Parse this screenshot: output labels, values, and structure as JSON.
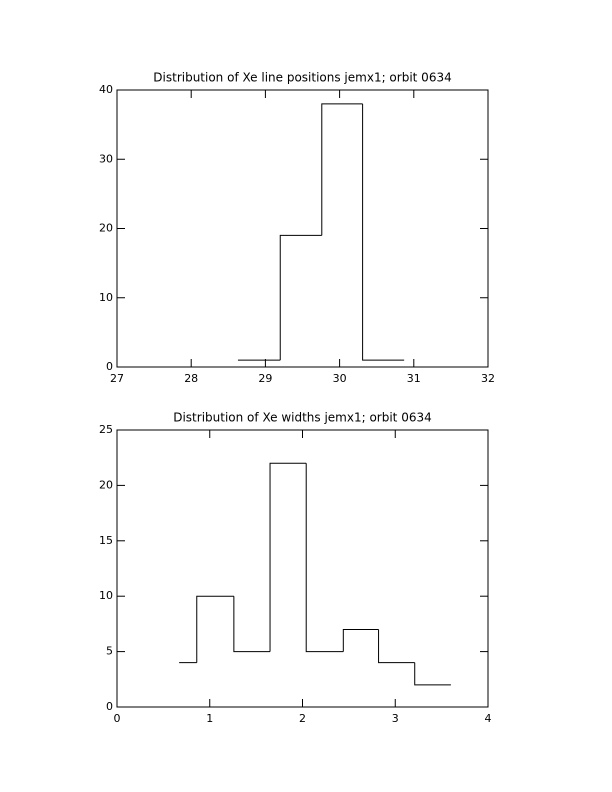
{
  "chart_data": [
    {
      "type": "histogram",
      "title": "Distribution of Xe line positions jemx1; orbit 0634",
      "bins": [
        28.63,
        29.2,
        29.76,
        30.31,
        30.87
      ],
      "values": [
        1,
        19,
        38,
        1
      ],
      "color": "#000000",
      "xlim": [
        27,
        32
      ],
      "xticks": [
        27,
        28,
        29,
        30,
        31,
        32
      ],
      "ylim": [
        0,
        40
      ],
      "yticks": [
        0,
        10,
        20,
        30,
        40
      ]
    },
    {
      "type": "histogram",
      "title": "Distribution of Xe widths jemx1; orbit 0634",
      "bins": [
        0.67,
        0.86,
        1.26,
        1.65,
        2.04,
        2.44,
        2.82,
        3.21,
        3.6
      ],
      "values": [
        4,
        10,
        5,
        22,
        5,
        7,
        4,
        2
      ],
      "color": "#000000",
      "xlim": [
        0,
        4
      ],
      "xticks": [
        0,
        1,
        2,
        3,
        4
      ],
      "ylim": [
        0,
        25
      ],
      "yticks": [
        0,
        5,
        10,
        15,
        20,
        25
      ]
    }
  ]
}
